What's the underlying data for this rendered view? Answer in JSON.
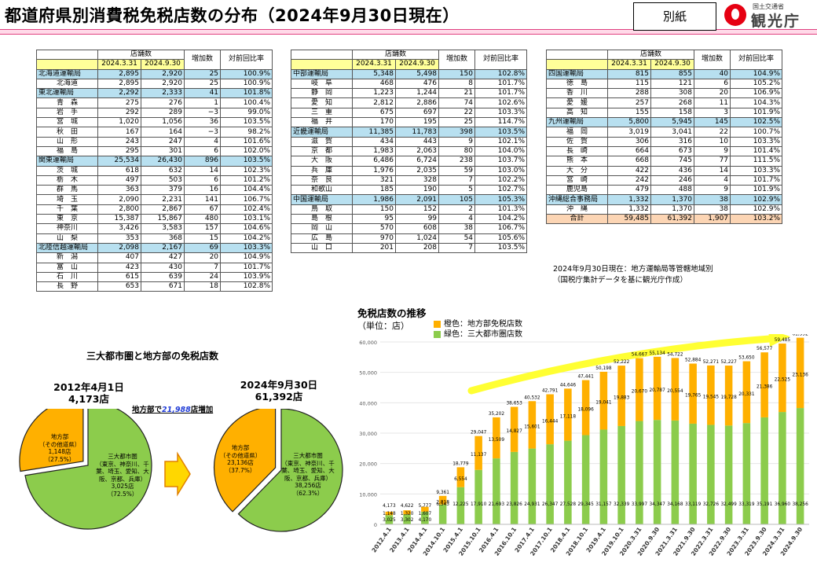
{
  "header": {
    "title": "都道府県別消費税免税店数の分布（2024年9月30日現在）",
    "badge": "別紙",
    "logo_org": "国土交通省",
    "logo_name": "観光庁"
  },
  "table_headers": {
    "stores": "店舗数",
    "date1": "2024.3.31",
    "date2": "2024.9.30",
    "increase": "増加数",
    "ratio": "対前回比率"
  },
  "table1": [
    {
      "name": "北海道運輸局",
      "a": "2,895",
      "b": "2,920",
      "inc": "25",
      "ratio": "100.9%",
      "bureau": true
    },
    {
      "name": "北海道",
      "a": "2,895",
      "b": "2,920",
      "inc": "25",
      "ratio": "100.9%"
    },
    {
      "name": "東北運輸局",
      "a": "2,292",
      "b": "2,333",
      "inc": "41",
      "ratio": "101.8%",
      "bureau": true
    },
    {
      "name": "青　森",
      "a": "275",
      "b": "276",
      "inc": "1",
      "ratio": "100.4%"
    },
    {
      "name": "岩　手",
      "a": "292",
      "b": "289",
      "inc": "−3",
      "ratio": "99.0%"
    },
    {
      "name": "宮　城",
      "a": "1,020",
      "b": "1,056",
      "inc": "36",
      "ratio": "103.5%"
    },
    {
      "name": "秋　田",
      "a": "167",
      "b": "164",
      "inc": "−3",
      "ratio": "98.2%"
    },
    {
      "name": "山　形",
      "a": "243",
      "b": "247",
      "inc": "4",
      "ratio": "101.6%"
    },
    {
      "name": "福　島",
      "a": "295",
      "b": "301",
      "inc": "6",
      "ratio": "102.0%"
    },
    {
      "name": "関東運輸局",
      "a": "25,534",
      "b": "26,430",
      "inc": "896",
      "ratio": "103.5%",
      "bureau": true
    },
    {
      "name": "茨　城",
      "a": "618",
      "b": "632",
      "inc": "14",
      "ratio": "102.3%"
    },
    {
      "name": "栃　木",
      "a": "497",
      "b": "503",
      "inc": "6",
      "ratio": "101.2%"
    },
    {
      "name": "群　馬",
      "a": "363",
      "b": "379",
      "inc": "16",
      "ratio": "104.4%"
    },
    {
      "name": "埼　玉",
      "a": "2,090",
      "b": "2,231",
      "inc": "141",
      "ratio": "106.7%"
    },
    {
      "name": "千　葉",
      "a": "2,800",
      "b": "2,867",
      "inc": "67",
      "ratio": "102.4%"
    },
    {
      "name": "東　京",
      "a": "15,387",
      "b": "15,867",
      "inc": "480",
      "ratio": "103.1%"
    },
    {
      "name": "神奈川",
      "a": "3,426",
      "b": "3,583",
      "inc": "157",
      "ratio": "104.6%"
    },
    {
      "name": "山　梨",
      "a": "353",
      "b": "368",
      "inc": "15",
      "ratio": "104.2%"
    },
    {
      "name": "北陸信越運輸局",
      "a": "2,098",
      "b": "2,167",
      "inc": "69",
      "ratio": "103.3%",
      "bureau": true
    },
    {
      "name": "新　潟",
      "a": "407",
      "b": "427",
      "inc": "20",
      "ratio": "104.9%"
    },
    {
      "name": "富　山",
      "a": "423",
      "b": "430",
      "inc": "7",
      "ratio": "101.7%"
    },
    {
      "name": "石　川",
      "a": "615",
      "b": "639",
      "inc": "24",
      "ratio": "103.9%"
    },
    {
      "name": "長　野",
      "a": "653",
      "b": "671",
      "inc": "18",
      "ratio": "102.8%"
    }
  ],
  "table2": [
    {
      "name": "中部運輸局",
      "a": "5,348",
      "b": "5,498",
      "inc": "150",
      "ratio": "102.8%",
      "bureau": true
    },
    {
      "name": "岐　阜",
      "a": "468",
      "b": "476",
      "inc": "8",
      "ratio": "101.7%"
    },
    {
      "name": "静　岡",
      "a": "1,223",
      "b": "1,244",
      "inc": "21",
      "ratio": "101.7%"
    },
    {
      "name": "愛　知",
      "a": "2,812",
      "b": "2,886",
      "inc": "74",
      "ratio": "102.6%"
    },
    {
      "name": "三　重",
      "a": "675",
      "b": "697",
      "inc": "22",
      "ratio": "103.3%"
    },
    {
      "name": "福　井",
      "a": "170",
      "b": "195",
      "inc": "25",
      "ratio": "114.7%"
    },
    {
      "name": "近畿運輸局",
      "a": "11,385",
      "b": "11,783",
      "inc": "398",
      "ratio": "103.5%",
      "bureau": true
    },
    {
      "name": "滋　賀",
      "a": "434",
      "b": "443",
      "inc": "9",
      "ratio": "102.1%"
    },
    {
      "name": "京　都",
      "a": "1,983",
      "b": "2,063",
      "inc": "80",
      "ratio": "104.0%"
    },
    {
      "name": "大　阪",
      "a": "6,486",
      "b": "6,724",
      "inc": "238",
      "ratio": "103.7%"
    },
    {
      "name": "兵　庫",
      "a": "1,976",
      "b": "2,035",
      "inc": "59",
      "ratio": "103.0%"
    },
    {
      "name": "奈　良",
      "a": "321",
      "b": "328",
      "inc": "7",
      "ratio": "102.2%"
    },
    {
      "name": "和歌山",
      "a": "185",
      "b": "190",
      "inc": "5",
      "ratio": "102.7%"
    },
    {
      "name": "中国運輸局",
      "a": "1,986",
      "b": "2,091",
      "inc": "105",
      "ratio": "105.3%",
      "bureau": true
    },
    {
      "name": "鳥　取",
      "a": "150",
      "b": "152",
      "inc": "2",
      "ratio": "101.3%"
    },
    {
      "name": "島　根",
      "a": "95",
      "b": "99",
      "inc": "4",
      "ratio": "104.2%"
    },
    {
      "name": "岡　山",
      "a": "570",
      "b": "608",
      "inc": "38",
      "ratio": "106.7%"
    },
    {
      "name": "広　島",
      "a": "970",
      "b": "1,024",
      "inc": "54",
      "ratio": "105.6%"
    },
    {
      "name": "山　口",
      "a": "201",
      "b": "208",
      "inc": "7",
      "ratio": "103.5%"
    }
  ],
  "table3": [
    {
      "name": "四国運輸局",
      "a": "815",
      "b": "855",
      "inc": "40",
      "ratio": "104.9%",
      "bureau": true
    },
    {
      "name": "徳　島",
      "a": "115",
      "b": "121",
      "inc": "6",
      "ratio": "105.2%"
    },
    {
      "name": "香　川",
      "a": "288",
      "b": "308",
      "inc": "20",
      "ratio": "106.9%"
    },
    {
      "name": "愛　媛",
      "a": "257",
      "b": "268",
      "inc": "11",
      "ratio": "104.3%"
    },
    {
      "name": "高　知",
      "a": "155",
      "b": "158",
      "inc": "3",
      "ratio": "101.9%"
    },
    {
      "name": "九州運輸局",
      "a": "5,800",
      "b": "5,945",
      "inc": "145",
      "ratio": "102.5%",
      "bureau": true
    },
    {
      "name": "福　岡",
      "a": "3,019",
      "b": "3,041",
      "inc": "22",
      "ratio": "100.7%"
    },
    {
      "name": "佐　賀",
      "a": "306",
      "b": "316",
      "inc": "10",
      "ratio": "103.3%"
    },
    {
      "name": "長　崎",
      "a": "664",
      "b": "673",
      "inc": "9",
      "ratio": "101.4%"
    },
    {
      "name": "熊　本",
      "a": "668",
      "b": "745",
      "inc": "77",
      "ratio": "111.5%"
    },
    {
      "name": "大　分",
      "a": "422",
      "b": "436",
      "inc": "14",
      "ratio": "103.3%"
    },
    {
      "name": "宮　崎",
      "a": "242",
      "b": "246",
      "inc": "4",
      "ratio": "101.7%"
    },
    {
      "name": "鹿児島",
      "a": "479",
      "b": "488",
      "inc": "9",
      "ratio": "101.9%"
    },
    {
      "name": "沖縄総合事務局",
      "a": "1,332",
      "b": "1,370",
      "inc": "38",
      "ratio": "102.9%",
      "bureau": true
    },
    {
      "name": "沖　縄",
      "a": "1,332",
      "b": "1,370",
      "inc": "38",
      "ratio": "102.9%"
    },
    {
      "name": "合計",
      "a": "59,485",
      "b": "61,392",
      "inc": "1,907",
      "ratio": "103.2%",
      "total": true
    }
  ],
  "note": {
    "line1": "2024年9月30日現在：地方運輸局等管轄地域別",
    "line2": "（国税庁集計データを基に観光庁作成）"
  },
  "pie_section": {
    "title": "三大都市圏と地方部の免税店数",
    "increase_prefix": "地方部で",
    "increase_value": "21,988",
    "increase_suffix": "店増加",
    "colors": {
      "regional": "#ffb000",
      "metro": "#8ccc4c"
    }
  },
  "bar_section": {
    "title": "免税店数の推移",
    "unit": "（単位：店）",
    "legend_regional": "橙色：地方部免税店数",
    "legend_metro": "緑色：三大都市圏店数",
    "colors": {
      "regional": "#ffb000",
      "metro": "#8ccc4c",
      "arrow": "#ffff33"
    }
  },
  "chart_data": [
    {
      "type": "pie",
      "title": "2012年4月1日",
      "total_label": "4,173店",
      "slices": [
        {
          "name": "地方部",
          "sub": "（その他道県）",
          "value": 1148,
          "value_label": "1,148店",
          "pct": "（27.5%）"
        },
        {
          "name": "三大都市圏",
          "sub": "（東京、神奈川、千葉、埼玉、愛知、大阪、京都、兵庫）",
          "value": 3025,
          "value_label": "3,025店",
          "pct": "（72.5%）"
        }
      ]
    },
    {
      "type": "pie",
      "title": "2024年9月30日",
      "total_label": "61,392店",
      "slices": [
        {
          "name": "地方部",
          "sub": "（その他道県）",
          "value": 23136,
          "value_label": "23,136店",
          "pct": "（37.7%）"
        },
        {
          "name": "三大都市圏",
          "sub": "（東京、神奈川、千葉、埼玉、愛知、大阪、京都、兵庫）",
          "value": 38256,
          "value_label": "38,256店",
          "pct": "（62.3%）"
        }
      ]
    },
    {
      "type": "bar",
      "stacked": true,
      "ylim": [
        0,
        60000
      ],
      "yticks": [
        "0",
        "10,000",
        "20,000",
        "30,000",
        "40,000",
        "50,000",
        "60,000"
      ],
      "categories": [
        "2012.4.1",
        "2013.4.1",
        "2014.4.1",
        "2014.10.1",
        "2015.4.1",
        "2015.10.1",
        "2016.4.1",
        "2016.10.1",
        "2017.4.1",
        "2017.10.1",
        "2018.4.1",
        "2018.10.1",
        "2019.4.1",
        "2019.10.1",
        "2020.3.31",
        "2020.9.30",
        "2021.3.31",
        "2021.9.30",
        "2022.3.31",
        "2022.9.30",
        "2023.3.31",
        "2023.9.30",
        "2024.3.31",
        "2024.9.30"
      ],
      "series": [
        {
          "name": "緑色：三大都市圏店数",
          "values": [
            3025,
            3302,
            4170,
            6543,
            12225,
            17910,
            21693,
            23826,
            24931,
            26347,
            27528,
            29345,
            31157,
            32339,
            33997,
            34347,
            34168,
            33119,
            32726,
            32499,
            33319,
            35191,
            36960,
            38256
          ],
          "labels": [
            "3,025",
            "3,302",
            "4,170",
            "6,543",
            "12,225",
            "17,910",
            "21,693",
            "23,826",
            "24,931",
            "26,347",
            "27,528",
            "29,345",
            "31,157",
            "32,339",
            "33,997",
            "34,347",
            "34,168",
            "33,119",
            "32,726",
            "32,499",
            "33,319",
            "35,191",
            "36,960",
            "38,256"
          ]
        },
        {
          "name": "橙色：地方部免税店数",
          "values": [
            1148,
            1320,
            1607,
            2818,
            6554,
            11137,
            13509,
            14827,
            15601,
            16444,
            17118,
            18096,
            19041,
            19883,
            20670,
            20787,
            20554,
            19765,
            19545,
            19728,
            20331,
            21386,
            22525,
            23136
          ],
          "labels": [
            "1,148",
            "1,320",
            "1,607",
            "2,818",
            "6,554",
            "11,137",
            "13,509",
            "14,827",
            "15,601",
            "16,444",
            "17,118",
            "18,096",
            "19,041",
            "19,883",
            "20,670",
            "20,787",
            "20,554",
            "19,765",
            "19,545",
            "19,728",
            "20,331",
            "21,386",
            "22,525",
            "23,136"
          ]
        }
      ],
      "totals": [
        "4,173",
        "4,622",
        "5,777",
        "9,361",
        "18,779",
        "29,047",
        "35,202",
        "38,653",
        "40,532",
        "42,791",
        "44,646",
        "47,441",
        "50,198",
        "52,222",
        "54,667",
        "55,134",
        "54,722",
        "52,884",
        "52,271",
        "52,227",
        "53,650",
        "56,577",
        "59,485",
        "61,392"
      ]
    }
  ]
}
